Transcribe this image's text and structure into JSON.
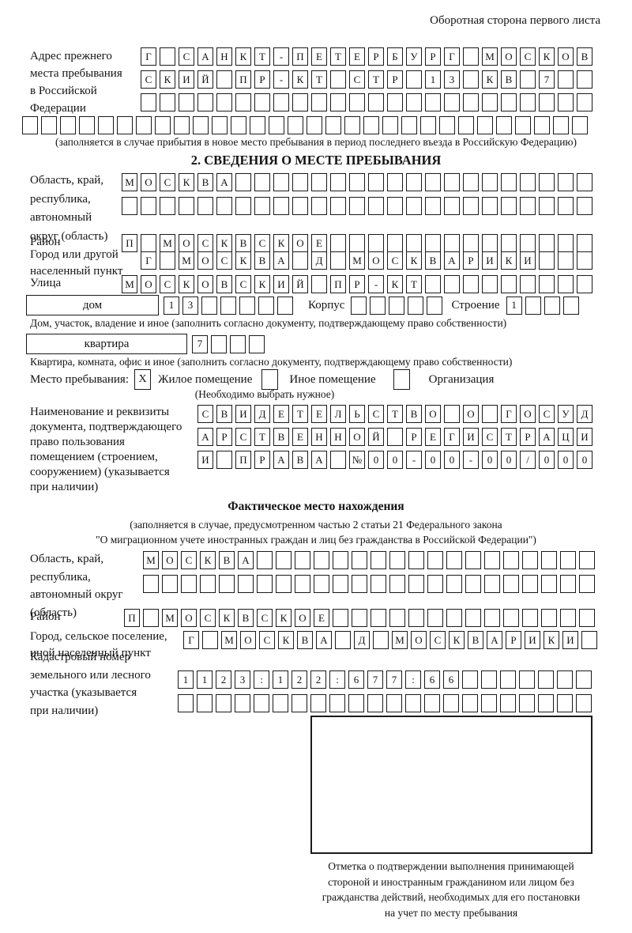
{
  "header": {
    "note": "Оборотная сторона первого листа"
  },
  "prev_address": {
    "label": "Адрес прежнего\nместа пребывания\nв Российской\nФедерации",
    "rows": [
      {
        "len": 24,
        "text": "Г САНКТ-ПЕТЕРБУРГ МОСКОВ"
      },
      {
        "len": 24,
        "text": "СКИЙ ПР-КТ СТР 13 КВ 7"
      },
      {
        "len": 24,
        "text": ""
      },
      {
        "len": 30,
        "text": ""
      }
    ],
    "note": "(заполняется в случае прибытия в новое место пребывания в период последнего въезда в Российскую Федерацию)"
  },
  "section2": {
    "title": "2. СВЕДЕНИЯ О МЕСТЕ ПРЕБЫВАНИЯ",
    "region": {
      "label": "Область, край,\nреспублика,\nавтономный\nокруг (область)",
      "rows": [
        {
          "len": 25,
          "text": "МОСКВА"
        },
        {
          "len": 25,
          "text": ""
        }
      ]
    },
    "district": {
      "label": "Район",
      "row": {
        "len": 25,
        "text": "П МОСКВСКОЕ"
      }
    },
    "city": {
      "label": "Город или другой\nнаселенный пункт",
      "row": {
        "len": 24,
        "text": "Г МОСКВА Д МОСКВАРИКИ"
      }
    },
    "street": {
      "label": "Улица",
      "row": {
        "len": 25,
        "text": "МОСКОВСКИЙ ПР-КТ"
      }
    },
    "house": {
      "label": "дом",
      "row": {
        "len": 7,
        "text": "13"
      }
    },
    "korpus": {
      "label": "Корпус",
      "row": {
        "len": 5,
        "text": ""
      }
    },
    "stroenie": {
      "label": "Строение",
      "row": {
        "len": 4,
        "text": "1"
      }
    },
    "house_note": "Дом, участок, владение и иное (заполнить согласно документу, подтверждающему право собственности)",
    "apartment": {
      "label": "квартира",
      "row": {
        "len": 4,
        "text": "7"
      }
    },
    "apartment_note": "Квартира, комната, офис и иное (заполнить согласно документу, подтверждающему право собственности)",
    "stay_type": {
      "label": "Место пребывания:",
      "options": [
        {
          "mark": "X",
          "label": "Жилое помещение"
        },
        {
          "mark": "",
          "label": "Иное помещение"
        },
        {
          "mark": "",
          "label": "Организация"
        }
      ],
      "note": "(Необходимо выбрать нужное)"
    },
    "document": {
      "label": "Наименование и реквизиты\nдокумента, подтверждающего\nправо пользования\nпомещением (строением,\nсооружением) (указывается\nпри наличии)",
      "rows": [
        {
          "len": 21,
          "text": "СВИДЕТЕЛЬСТВО О ГОСУД"
        },
        {
          "len": 21,
          "text": "АРСТВЕННОЙ РЕГИСТРАЦИ"
        },
        {
          "len": 21,
          "text": "И ПРАВА №00-00-00/000"
        }
      ]
    }
  },
  "actual_location": {
    "title": "Фактическое место нахождения",
    "note_line1": "(заполняется в случае, предусмотренном частью 2 статьи 21 Федерального закона",
    "note_line2": "\"О миграционном учете иностранных граждан и лиц без гражданства в Российской Федерации\")",
    "region": {
      "label": "Область, край,\nреспублика,\nавтономный округ\n(область)",
      "rows": [
        {
          "len": 24,
          "text": "МОСКВА"
        },
        {
          "len": 24,
          "text": ""
        }
      ]
    },
    "district": {
      "label": "Район",
      "row": {
        "len": 25,
        "text": "П МОСКВСКОЕ"
      }
    },
    "city": {
      "label": "Город, сельское поселение,\nиной населенный пункт",
      "row": {
        "len": 22,
        "text": "Г МОСКВА Д МОСКВАРИКИ"
      }
    },
    "cadastral": {
      "label": "Кадастровый номер\nземельного или лесного\nучастка (указывается\nпри наличии)",
      "rows": [
        {
          "len": 22,
          "text": "1123:122:677:66"
        },
        {
          "len": 22,
          "text": ""
        }
      ]
    },
    "stamp_box_note": "Отметка о подтверждении выполнения принимающей\nстороной и иностранным гражданином или лицом без\nгражданства действий, необходимых для его постановки\nна учет по месту пребывания"
  }
}
